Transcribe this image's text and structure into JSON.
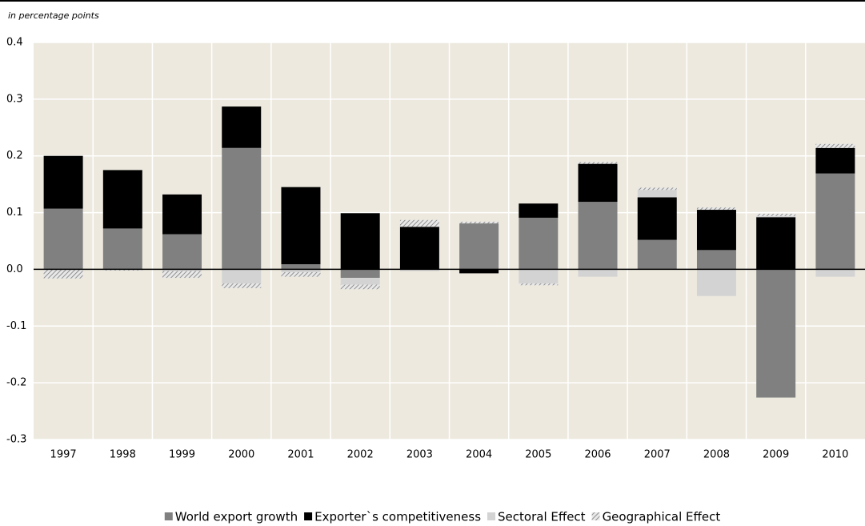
{
  "chart_data": {
    "type": "stacked_bar",
    "y_label": "in percentage points",
    "categories": [
      "1997",
      "1998",
      "1999",
      "2000",
      "2001",
      "2002",
      "2003",
      "2004",
      "2005",
      "2006",
      "2007",
      "2008",
      "2009",
      "2010"
    ],
    "series": [
      {
        "name": "World export growth",
        "color": "#808080",
        "values": [
          0.107,
          0.072,
          0.062,
          0.214,
          0.009,
          -0.015,
          0.0,
          0.081,
          0.091,
          0.119,
          0.052,
          0.034,
          -0.226,
          0.169
        ]
      },
      {
        "name": "Exporter`s competitiveness",
        "color": "#000000",
        "values": [
          0.093,
          0.103,
          0.07,
          0.073,
          0.136,
          0.099,
          0.075,
          -0.007,
          0.025,
          0.067,
          0.075,
          0.071,
          0.092,
          0.045
        ]
      },
      {
        "name": "Sectoral Effect",
        "color": "#d3d3d3",
        "values": [
          0.0,
          0.0,
          -0.003,
          -0.025,
          -0.005,
          -0.012,
          -0.003,
          0.0,
          -0.025,
          -0.013,
          0.013,
          -0.047,
          0.002,
          -0.013
        ]
      },
      {
        "name": "Geographical Effect",
        "color": "#9a9a9a",
        "values": [
          -0.016,
          -0.002,
          -0.012,
          -0.008,
          -0.008,
          -0.008,
          0.012,
          0.003,
          -0.003,
          0.003,
          0.004,
          0.004,
          0.004,
          0.007
        ]
      }
    ],
    "ylim": [
      -0.3,
      0.4
    ],
    "yticks": [
      -0.3,
      -0.2,
      -0.1,
      {
        "value": 0,
        "label": "0.0"
      },
      0.1,
      0.2,
      0.3,
      0.4
    ],
    "grid": true
  }
}
